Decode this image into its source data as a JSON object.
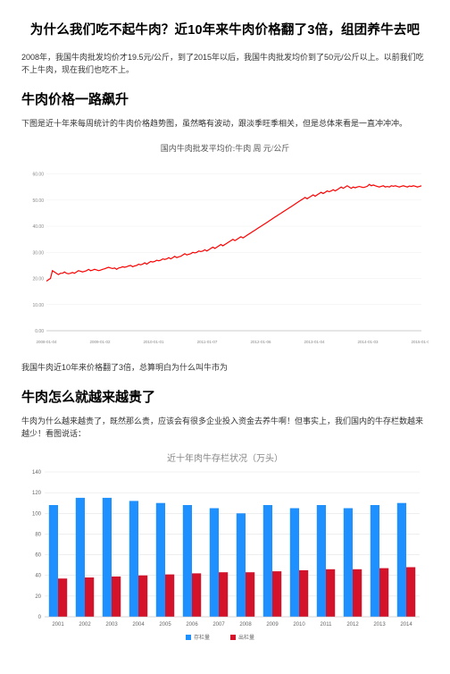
{
  "title": "为什么我们吃不起牛肉？近10年来牛肉价格翻了3倍，组团养牛去吧",
  "intro": "2008年，我国牛肉批发均价才19.5元/公斤，到了2015年以后，我国牛肉批发均价到了50元/公斤以上。以前我们吃不上牛肉，现在我们也吃不上。",
  "section1_heading": "牛肉价格一路飙升",
  "section1_para": "下图是近十年来每周统计的牛肉价格趋势图，虽然略有波动，跟淡季旺季相关，但是总体来看是一直冲冲冲。",
  "line_chart": {
    "title": "国内牛肉批发平均价:牛肉 周 元/公斤",
    "ylim": [
      0,
      65
    ],
    "yticks": [
      0,
      10,
      20,
      30,
      40,
      50,
      60
    ],
    "ytick_labels": [
      "0.00",
      "10.00",
      "20.00",
      "30.00",
      "40.00",
      "50.00",
      "60.00"
    ],
    "xtick_labels": [
      "2008-01-04",
      "2009-01-02",
      "2010-01-01",
      "2011-01-07",
      "2012-01-06",
      "2013-01-04",
      "2014-01-03",
      "2015-01-02"
    ],
    "series_color": "#ff0000",
    "background": "#ffffff",
    "grid_color": "#eeeeee",
    "axis_color": "#cccccc",
    "line_width": 1.2,
    "values": [
      19,
      19.5,
      20,
      23,
      22.5,
      22,
      21.5,
      22,
      22,
      22.5,
      22,
      21.8,
      22,
      22.3,
      22,
      22.5,
      23,
      22.8,
      22.5,
      22.7,
      23,
      23.5,
      23,
      23.2,
      23.5,
      23.3,
      23,
      23.2,
      23.5,
      23.7,
      24,
      24.3,
      24,
      23.8,
      24,
      23.5,
      24,
      24.2,
      24.5,
      24.3,
      24.5,
      24.8,
      25,
      24.5,
      24.8,
      25,
      25.5,
      25.2,
      25.5,
      26,
      25.5,
      26,
      26.5,
      26.3,
      26.5,
      27,
      26.8,
      27,
      27.5,
      27.3,
      27.5,
      28,
      27.5,
      28,
      28.5,
      28,
      28.3,
      28.5,
      29,
      29.5,
      29,
      29.3,
      29.5,
      30,
      29.8,
      30,
      30.5,
      30.3,
      30.5,
      31,
      30.5,
      31,
      31.5,
      32,
      31.5,
      32,
      32.5,
      33,
      32.5,
      33,
      33.5,
      34,
      34.5,
      35,
      34.5,
      35,
      35.5,
      36,
      35.5,
      36,
      36.5,
      37,
      37.5,
      38,
      38.5,
      39,
      39.5,
      40,
      40.5,
      41,
      41.5,
      42,
      42.5,
      43,
      43.5,
      44,
      44.5,
      45,
      45.5,
      46,
      46.5,
      47,
      47.5,
      48,
      48.5,
      49,
      49.5,
      50,
      50.5,
      51,
      50.5,
      51,
      51.5,
      52,
      51.5,
      52,
      52.5,
      53,
      52.5,
      53,
      53.5,
      53.2,
      53.5,
      54,
      53.5,
      54,
      54.5,
      55,
      54.5,
      55,
      55.5,
      55,
      54.5,
      55,
      54.7,
      55,
      55.2,
      55,
      54.8,
      55,
      55.3,
      56,
      55.5,
      55.8,
      55.5,
      55.2,
      55,
      55.3,
      55.5,
      55,
      55.2,
      55,
      55.5,
      55.3,
      55.5,
      55.2,
      55,
      55.3,
      55.5,
      55.2,
      55,
      55.4,
      55.2,
      55.5,
      55.3,
      55,
      55.2,
      55.5
    ]
  },
  "section1_after": "我国牛肉近10年来价格翻了3倍，总算明白为什么叫牛市为",
  "section2_heading": "牛肉怎么就越来越贵了",
  "section2_para": "牛肉为什么越来越贵了，既然那么贵，应该会有很多企业投入资金去养牛啊！但事实上，我们国内的牛存栏数越来越少！看图说话：",
  "bar_chart": {
    "title": "近十年肉牛存栏状况（万头）",
    "title_fontsize": 10,
    "title_color": "#888888",
    "categories": [
      "2001",
      "2002",
      "2003",
      "2004",
      "2005",
      "2006",
      "2007",
      "2008",
      "2009",
      "2010",
      "2011",
      "2012",
      "2013",
      "2014"
    ],
    "series": [
      {
        "name": "存栏量",
        "color": "#1e90ff",
        "values": [
          108,
          115,
          115,
          112,
          110,
          108,
          105,
          100,
          108,
          105,
          108,
          105,
          108,
          110
        ]
      },
      {
        "name": "出栏量",
        "color": "#d4122a",
        "values": [
          37,
          38,
          39,
          40,
          41,
          42,
          43,
          43,
          44,
          45,
          46,
          46,
          47,
          48
        ]
      }
    ],
    "ylim": [
      0,
      140
    ],
    "yticks": [
      0,
      20,
      40,
      60,
      80,
      100,
      120,
      140
    ],
    "background": "#ffffff",
    "grid_color": "#e4e4e4",
    "bar_width": 0.34
  }
}
